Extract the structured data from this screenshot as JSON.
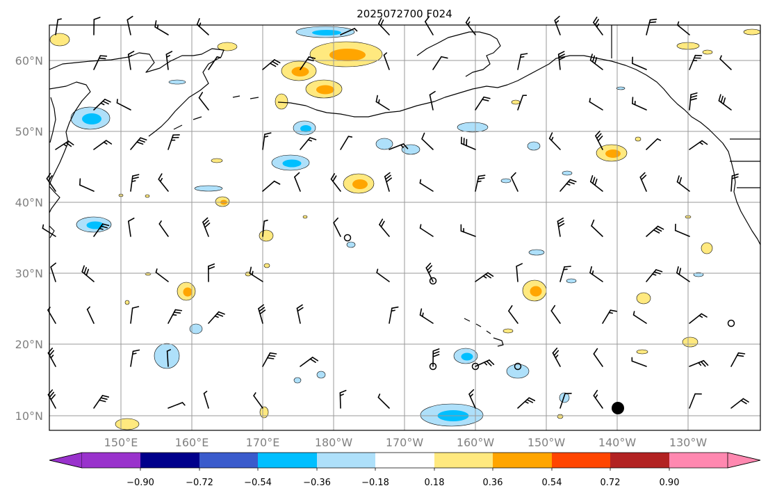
{
  "title": "2025072700 F024",
  "lat_labels": [
    "60°N",
    "50°N",
    "40°N",
    "30°N",
    "20°N",
    "10°N"
  ],
  "lon_labels": [
    "150°E",
    "160°E",
    "170°E",
    "180°W",
    "170°W",
    "160°W",
    "150°W",
    "140°W",
    "130°W"
  ],
  "colorbar": {
    "tick_labels": [
      "−0.90",
      "−0.72",
      "−0.54",
      "−0.36",
      "−0.18",
      "0.18",
      "0.36",
      "0.54",
      "0.72",
      "0.90"
    ],
    "colors": [
      "#9932cc",
      "#00008b",
      "#3a5bcc",
      "#00bfff",
      "#aee0fa",
      "#ffffff",
      "#ffe97f",
      "#ffa500",
      "#ff4500",
      "#b22222",
      "#ff88b0"
    ]
  },
  "map": {
    "projection": "cylindrical",
    "lon_range": [
      "140°E",
      "120°W"
    ],
    "lat_range": [
      "8°N",
      "65°N"
    ],
    "grid": true,
    "marker": "black dot near 140°W, 11°N",
    "fields": [
      "shaded anomaly field",
      "wind barbs",
      "coastlines"
    ]
  }
}
